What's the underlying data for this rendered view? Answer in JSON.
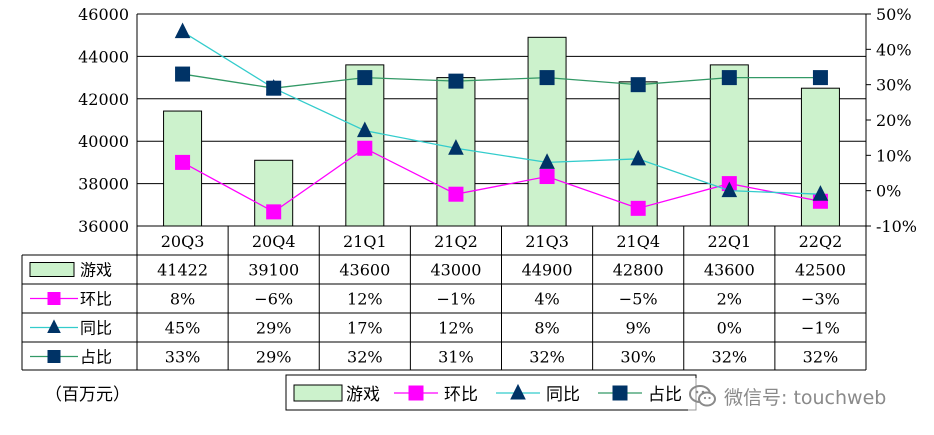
{
  "chart_data": {
    "type": "bar",
    "categories": [
      "20Q3",
      "20Q4",
      "21Q1",
      "21Q2",
      "21Q3",
      "21Q4",
      "22Q1",
      "22Q2"
    ],
    "unit_label": "（百万元）",
    "y_left": {
      "min": 36000,
      "max": 46000,
      "ticks": [
        "36000",
        "38000",
        "40000",
        "42000",
        "44000",
        "46000"
      ]
    },
    "y_right": {
      "min": -10,
      "max": 50,
      "ticks": [
        "-10%",
        "0%",
        "10%",
        "20%",
        "30%",
        "40%",
        "50%"
      ]
    },
    "series": [
      {
        "name": "游戏",
        "kind": "bar",
        "color": "#ccf2cc",
        "values": [
          41422,
          39100,
          43600,
          43000,
          44900,
          42800,
          43600,
          42500
        ],
        "labels": [
          "41422",
          "39100",
          "43600",
          "43000",
          "44900",
          "42800",
          "43600",
          "42500"
        ]
      },
      {
        "name": "环比",
        "kind": "line",
        "axis": "right",
        "marker": "square",
        "color": "#ff00ff",
        "values": [
          8,
          -6,
          12,
          -1,
          4,
          -5,
          2,
          -3
        ],
        "labels": [
          "8%",
          "−6%",
          "12%",
          "−1%",
          "4%",
          "−5%",
          "2%",
          "−3%"
        ]
      },
      {
        "name": "同比",
        "kind": "line",
        "axis": "right",
        "marker": "triangle",
        "color": "#33cccc",
        "marker_color": "#003366",
        "values": [
          45,
          29,
          17,
          12,
          8,
          9,
          0,
          -1
        ],
        "labels": [
          "45%",
          "29%",
          "17%",
          "12%",
          "8%",
          "9%",
          "0%",
          "−1%"
        ]
      },
      {
        "name": "占比",
        "kind": "line",
        "axis": "right",
        "marker": "square",
        "color": "#339966",
        "marker_color": "#003366",
        "values": [
          33,
          29,
          32,
          31,
          32,
          30,
          32,
          32
        ],
        "labels": [
          "33%",
          "29%",
          "32%",
          "31%",
          "32%",
          "30%",
          "32%",
          "32%"
        ]
      }
    ],
    "legend": [
      "游戏",
      "环比",
      "同比",
      "占比"
    ]
  },
  "watermark": {
    "text": "微信号: touchweb",
    "icon": "wechat-icon"
  }
}
